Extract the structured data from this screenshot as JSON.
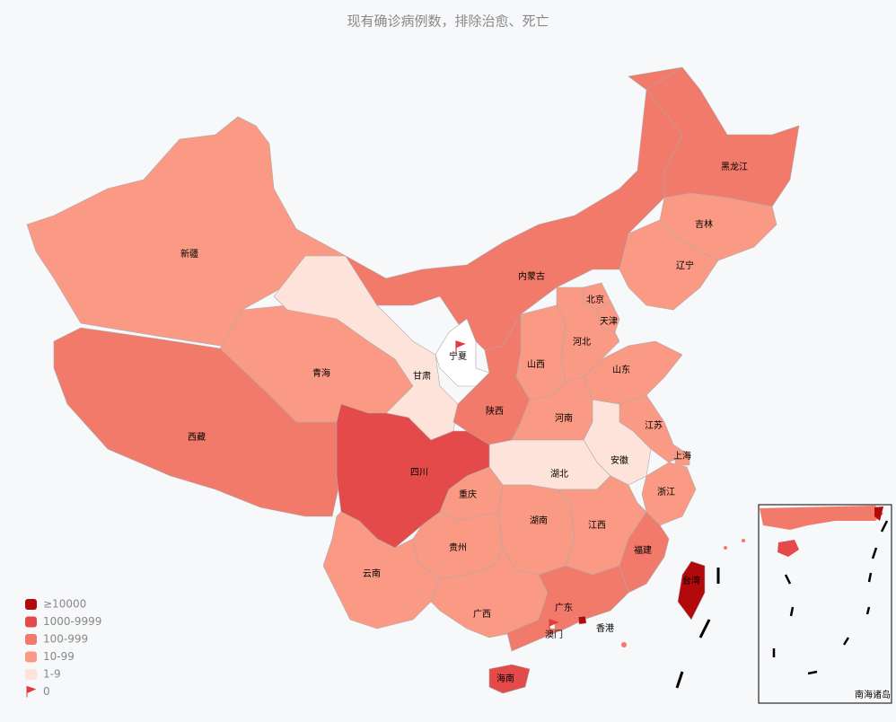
{
  "title": "现有确诊病例数，排除治愈、死亡",
  "legend": [
    {
      "label": "≥10000",
      "color": "#b20a0a"
    },
    {
      "label": "1000-9999",
      "color": "#e44a4a"
    },
    {
      "label": "100-999",
      "color": "#f27a6a"
    },
    {
      "label": "10-99",
      "color": "#fb9a84"
    },
    {
      "label": "1-9",
      "color": "#fde3da"
    },
    {
      "label": "0",
      "color": "#e33b3b"
    }
  ],
  "regions": [
    {
      "name": "新疆",
      "color": "#fb9a84"
    },
    {
      "name": "西藏",
      "color": "#f27a6a"
    },
    {
      "name": "青海",
      "color": "#fb9a84"
    },
    {
      "name": "甘肃",
      "color": "#fde3da"
    },
    {
      "name": "内蒙古",
      "color": "#f27a6a"
    },
    {
      "name": "黑龙江",
      "color": "#f27a6a"
    },
    {
      "name": "吉林",
      "color": "#fb9a84"
    },
    {
      "name": "辽宁",
      "color": "#fb9a84"
    },
    {
      "name": "河北",
      "color": "#fb9a84"
    },
    {
      "name": "北京",
      "color": "#fb9a84"
    },
    {
      "name": "天津",
      "color": "#fb9a84"
    },
    {
      "name": "山西",
      "color": "#fb9a84"
    },
    {
      "name": "山东",
      "color": "#fb9a84"
    },
    {
      "name": "陕西",
      "color": "#f27a6a"
    },
    {
      "name": "宁夏",
      "color": "#ffffff"
    },
    {
      "name": "河南",
      "color": "#fb9a84"
    },
    {
      "name": "江苏",
      "color": "#fb9a84"
    },
    {
      "name": "安徽",
      "color": "#fde3da"
    },
    {
      "name": "上海",
      "color": "#fb9a84"
    },
    {
      "name": "湖北",
      "color": "#fde3da"
    },
    {
      "name": "四川",
      "color": "#e44a4a"
    },
    {
      "name": "重庆",
      "color": "#fb9a84"
    },
    {
      "name": "浙江",
      "color": "#fb9a84"
    },
    {
      "name": "湖南",
      "color": "#fb9a84"
    },
    {
      "name": "江西",
      "color": "#fb9a84"
    },
    {
      "name": "福建",
      "color": "#f27a6a"
    },
    {
      "name": "贵州",
      "color": "#fb9a84"
    },
    {
      "name": "云南",
      "color": "#fb9a84"
    },
    {
      "name": "广西",
      "color": "#fb9a84"
    },
    {
      "name": "广东",
      "color": "#f27a6a"
    },
    {
      "name": "台湾",
      "color": "#b20a0a"
    },
    {
      "name": "海南",
      "color": "#e44a4a"
    },
    {
      "name": "香港",
      "color": "#b20a0a"
    },
    {
      "name": "澳门",
      "color": "#ffffff"
    }
  ],
  "inset_label": "南海诸岛"
}
